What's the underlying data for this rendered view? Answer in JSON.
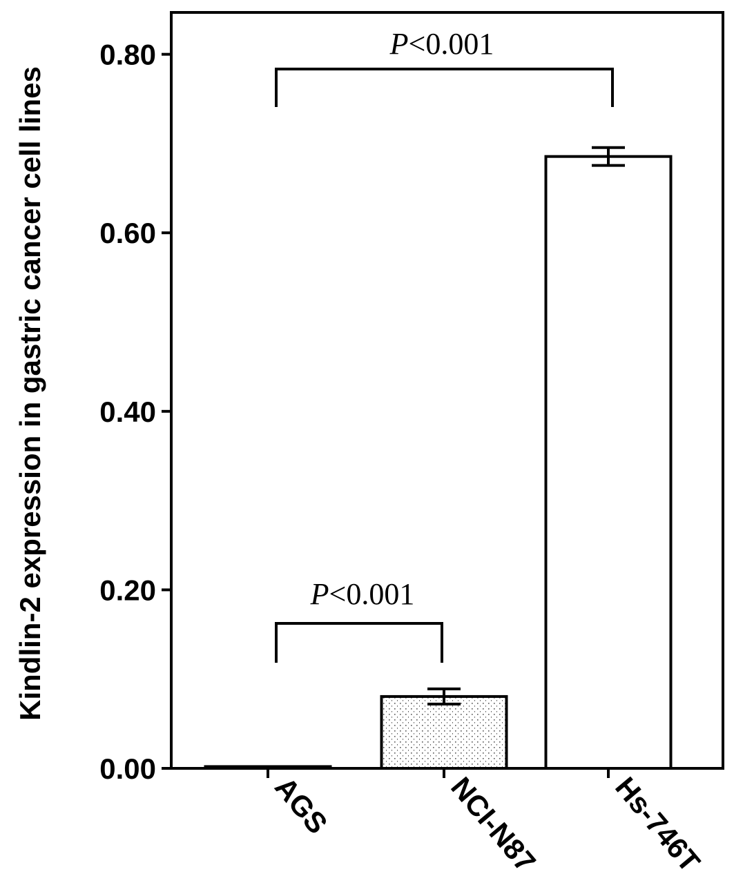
{
  "chart_data": {
    "type": "bar",
    "y_label": "Kindlin-2 expression in gastric cancer cell lines",
    "categories": [
      "AGS",
      "NCI-N87",
      "Hs-746T"
    ],
    "values": [
      0.002,
      0.0805,
      0.6855
    ],
    "errors": [
      0,
      0.0085,
      0.01
    ],
    "color": "#ffffff",
    "ylim": [
      0,
      0.85
    ],
    "yticks": [
      {
        "value": 0,
        "label": "0.00"
      },
      {
        "value": 0.2,
        "label": "0.20"
      },
      {
        "value": 0.4,
        "label": "0.40"
      },
      {
        "value": 0.6,
        "label": "0.60"
      },
      {
        "value": 0.8,
        "label": "0.80"
      }
    ],
    "annotations": [
      {
        "text": "P<0.001",
        "from": 0,
        "to": 1
      },
      {
        "text": "P<0.001",
        "from": 0,
        "to": 2
      }
    ]
  }
}
